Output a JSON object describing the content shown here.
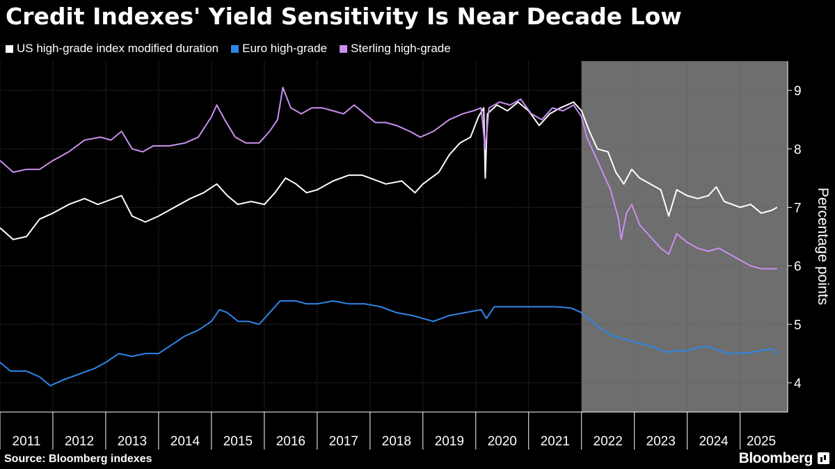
{
  "header": {
    "title": "Credit Indexes' Yield Sensitivity Is Near Decade Low"
  },
  "footer": {
    "source": "Source: Bloomberg indexes",
    "brand": "Bloomberg"
  },
  "colors": {
    "background": "#000000",
    "shade": "#6e6e6e",
    "us": "#ffffff",
    "euro": "#2f86e8",
    "sterling": "#c990f0",
    "axis": "#ffffff"
  },
  "chart_data": {
    "type": "line",
    "title": "Credit Indexes' Yield Sensitivity Is Near Decade Low",
    "xlabel": "",
    "ylabel": "Percentage points",
    "xlim": [
      2011.0,
      2025.9
    ],
    "ylim": [
      3.5,
      9.5
    ],
    "yticks": [
      4,
      5,
      6,
      7,
      8,
      9
    ],
    "xticks": [
      "2011",
      "2012",
      "2013",
      "2014",
      "2015",
      "2016",
      "2017",
      "2018",
      "2019",
      "2020",
      "2021",
      "2022",
      "2023",
      "2024",
      "2025"
    ],
    "legend_position": "top-left",
    "shaded_region": {
      "start": 2022.0,
      "end": 2025.9
    },
    "series": [
      {
        "name": "US high-grade index modified duration",
        "color": "#ffffff",
        "points": [
          [
            2011.0,
            6.65
          ],
          [
            2011.25,
            6.45
          ],
          [
            2011.5,
            6.5
          ],
          [
            2011.75,
            6.8
          ],
          [
            2012.0,
            6.9
          ],
          [
            2012.3,
            7.05
          ],
          [
            2012.6,
            7.15
          ],
          [
            2012.85,
            7.05
          ],
          [
            2013.0,
            7.1
          ],
          [
            2013.3,
            7.2
          ],
          [
            2013.5,
            6.85
          ],
          [
            2013.75,
            6.75
          ],
          [
            2014.0,
            6.85
          ],
          [
            2014.3,
            7.0
          ],
          [
            2014.6,
            7.15
          ],
          [
            2014.85,
            7.25
          ],
          [
            2015.1,
            7.4
          ],
          [
            2015.3,
            7.2
          ],
          [
            2015.5,
            7.05
          ],
          [
            2015.75,
            7.1
          ],
          [
            2016.0,
            7.05
          ],
          [
            2016.2,
            7.25
          ],
          [
            2016.4,
            7.5
          ],
          [
            2016.6,
            7.4
          ],
          [
            2016.8,
            7.25
          ],
          [
            2017.0,
            7.3
          ],
          [
            2017.3,
            7.45
          ],
          [
            2017.6,
            7.55
          ],
          [
            2017.85,
            7.55
          ],
          [
            2018.0,
            7.5
          ],
          [
            2018.3,
            7.4
          ],
          [
            2018.6,
            7.45
          ],
          [
            2018.85,
            7.25
          ],
          [
            2019.0,
            7.4
          ],
          [
            2019.3,
            7.6
          ],
          [
            2019.5,
            7.9
          ],
          [
            2019.7,
            8.1
          ],
          [
            2019.9,
            8.2
          ],
          [
            2020.05,
            8.55
          ],
          [
            2020.15,
            8.7
          ],
          [
            2020.18,
            7.5
          ],
          [
            2020.22,
            8.6
          ],
          [
            2020.4,
            8.75
          ],
          [
            2020.6,
            8.65
          ],
          [
            2020.8,
            8.8
          ],
          [
            2021.0,
            8.65
          ],
          [
            2021.2,
            8.4
          ],
          [
            2021.4,
            8.6
          ],
          [
            2021.6,
            8.7
          ],
          [
            2021.85,
            8.8
          ],
          [
            2022.0,
            8.65
          ],
          [
            2022.15,
            8.3
          ],
          [
            2022.3,
            8.0
          ],
          [
            2022.5,
            7.95
          ],
          [
            2022.65,
            7.6
          ],
          [
            2022.8,
            7.4
          ],
          [
            2022.95,
            7.65
          ],
          [
            2023.1,
            7.5
          ],
          [
            2023.3,
            7.4
          ],
          [
            2023.5,
            7.3
          ],
          [
            2023.65,
            6.85
          ],
          [
            2023.8,
            7.3
          ],
          [
            2024.0,
            7.2
          ],
          [
            2024.2,
            7.15
          ],
          [
            2024.4,
            7.2
          ],
          [
            2024.55,
            7.35
          ],
          [
            2024.7,
            7.1
          ],
          [
            2024.85,
            7.05
          ],
          [
            2025.0,
            7.0
          ],
          [
            2025.2,
            7.05
          ],
          [
            2025.4,
            6.9
          ],
          [
            2025.6,
            6.95
          ],
          [
            2025.7,
            7.0
          ]
        ]
      },
      {
        "name": "Euro high-grade",
        "color": "#2f86e8",
        "points": [
          [
            2011.0,
            4.35
          ],
          [
            2011.2,
            4.2
          ],
          [
            2011.5,
            4.2
          ],
          [
            2011.75,
            4.1
          ],
          [
            2011.95,
            3.95
          ],
          [
            2012.2,
            4.05
          ],
          [
            2012.5,
            4.15
          ],
          [
            2012.8,
            4.25
          ],
          [
            2013.0,
            4.35
          ],
          [
            2013.25,
            4.5
          ],
          [
            2013.5,
            4.45
          ],
          [
            2013.75,
            4.5
          ],
          [
            2014.0,
            4.5
          ],
          [
            2014.25,
            4.65
          ],
          [
            2014.5,
            4.8
          ],
          [
            2014.75,
            4.9
          ],
          [
            2015.0,
            5.05
          ],
          [
            2015.15,
            5.25
          ],
          [
            2015.3,
            5.2
          ],
          [
            2015.5,
            5.05
          ],
          [
            2015.7,
            5.05
          ],
          [
            2015.9,
            5.0
          ],
          [
            2016.1,
            5.2
          ],
          [
            2016.3,
            5.4
          ],
          [
            2016.6,
            5.4
          ],
          [
            2016.8,
            5.35
          ],
          [
            2017.0,
            5.35
          ],
          [
            2017.3,
            5.4
          ],
          [
            2017.6,
            5.35
          ],
          [
            2017.9,
            5.35
          ],
          [
            2018.2,
            5.3
          ],
          [
            2018.5,
            5.2
          ],
          [
            2018.8,
            5.15
          ],
          [
            2019.0,
            5.1
          ],
          [
            2019.2,
            5.05
          ],
          [
            2019.5,
            5.15
          ],
          [
            2019.8,
            5.2
          ],
          [
            2020.1,
            5.25
          ],
          [
            2020.2,
            5.1
          ],
          [
            2020.35,
            5.3
          ],
          [
            2020.6,
            5.3
          ],
          [
            2020.9,
            5.3
          ],
          [
            2021.2,
            5.3
          ],
          [
            2021.5,
            5.3
          ],
          [
            2021.8,
            5.28
          ],
          [
            2022.0,
            5.2
          ],
          [
            2022.2,
            5.05
          ],
          [
            2022.4,
            4.9
          ],
          [
            2022.6,
            4.8
          ],
          [
            2022.8,
            4.75
          ],
          [
            2023.0,
            4.7
          ],
          [
            2023.2,
            4.65
          ],
          [
            2023.4,
            4.6
          ],
          [
            2023.6,
            4.52
          ],
          [
            2023.8,
            4.55
          ],
          [
            2024.0,
            4.55
          ],
          [
            2024.2,
            4.6
          ],
          [
            2024.4,
            4.62
          ],
          [
            2024.6,
            4.55
          ],
          [
            2024.8,
            4.5
          ],
          [
            2025.0,
            4.5
          ],
          [
            2025.2,
            4.52
          ],
          [
            2025.4,
            4.55
          ],
          [
            2025.6,
            4.58
          ],
          [
            2025.7,
            4.5
          ]
        ]
      },
      {
        "name": "Sterling high-grade",
        "color": "#c990f0",
        "points": [
          [
            2011.0,
            7.8
          ],
          [
            2011.25,
            7.6
          ],
          [
            2011.5,
            7.65
          ],
          [
            2011.75,
            7.65
          ],
          [
            2012.0,
            7.8
          ],
          [
            2012.3,
            7.95
          ],
          [
            2012.6,
            8.15
          ],
          [
            2012.9,
            8.2
          ],
          [
            2013.1,
            8.15
          ],
          [
            2013.3,
            8.3
          ],
          [
            2013.5,
            8.0
          ],
          [
            2013.7,
            7.95
          ],
          [
            2013.9,
            8.05
          ],
          [
            2014.2,
            8.05
          ],
          [
            2014.5,
            8.1
          ],
          [
            2014.75,
            8.2
          ],
          [
            2015.0,
            8.55
          ],
          [
            2015.1,
            8.75
          ],
          [
            2015.25,
            8.5
          ],
          [
            2015.45,
            8.2
          ],
          [
            2015.65,
            8.1
          ],
          [
            2015.9,
            8.1
          ],
          [
            2016.1,
            8.3
          ],
          [
            2016.25,
            8.5
          ],
          [
            2016.35,
            9.05
          ],
          [
            2016.5,
            8.7
          ],
          [
            2016.7,
            8.6
          ],
          [
            2016.9,
            8.7
          ],
          [
            2017.1,
            8.7
          ],
          [
            2017.3,
            8.65
          ],
          [
            2017.5,
            8.6
          ],
          [
            2017.7,
            8.75
          ],
          [
            2017.9,
            8.6
          ],
          [
            2018.1,
            8.45
          ],
          [
            2018.3,
            8.45
          ],
          [
            2018.5,
            8.4
          ],
          [
            2018.75,
            8.3
          ],
          [
            2018.95,
            8.2
          ],
          [
            2019.2,
            8.3
          ],
          [
            2019.5,
            8.5
          ],
          [
            2019.75,
            8.6
          ],
          [
            2019.95,
            8.65
          ],
          [
            2020.1,
            8.7
          ],
          [
            2020.18,
            8.0
          ],
          [
            2020.25,
            8.7
          ],
          [
            2020.45,
            8.8
          ],
          [
            2020.65,
            8.75
          ],
          [
            2020.85,
            8.85
          ],
          [
            2021.05,
            8.6
          ],
          [
            2021.25,
            8.5
          ],
          [
            2021.45,
            8.7
          ],
          [
            2021.65,
            8.65
          ],
          [
            2021.85,
            8.75
          ],
          [
            2022.0,
            8.55
          ],
          [
            2022.1,
            8.2
          ],
          [
            2022.25,
            7.9
          ],
          [
            2022.4,
            7.6
          ],
          [
            2022.55,
            7.3
          ],
          [
            2022.7,
            6.8
          ],
          [
            2022.75,
            6.45
          ],
          [
            2022.85,
            6.9
          ],
          [
            2022.95,
            7.05
          ],
          [
            2023.1,
            6.7
          ],
          [
            2023.3,
            6.5
          ],
          [
            2023.5,
            6.3
          ],
          [
            2023.65,
            6.2
          ],
          [
            2023.8,
            6.55
          ],
          [
            2024.0,
            6.4
          ],
          [
            2024.2,
            6.3
          ],
          [
            2024.4,
            6.25
          ],
          [
            2024.6,
            6.3
          ],
          [
            2024.8,
            6.2
          ],
          [
            2025.0,
            6.1
          ],
          [
            2025.2,
            6.0
          ],
          [
            2025.4,
            5.95
          ],
          [
            2025.6,
            5.95
          ],
          [
            2025.7,
            5.95
          ]
        ]
      }
    ]
  }
}
